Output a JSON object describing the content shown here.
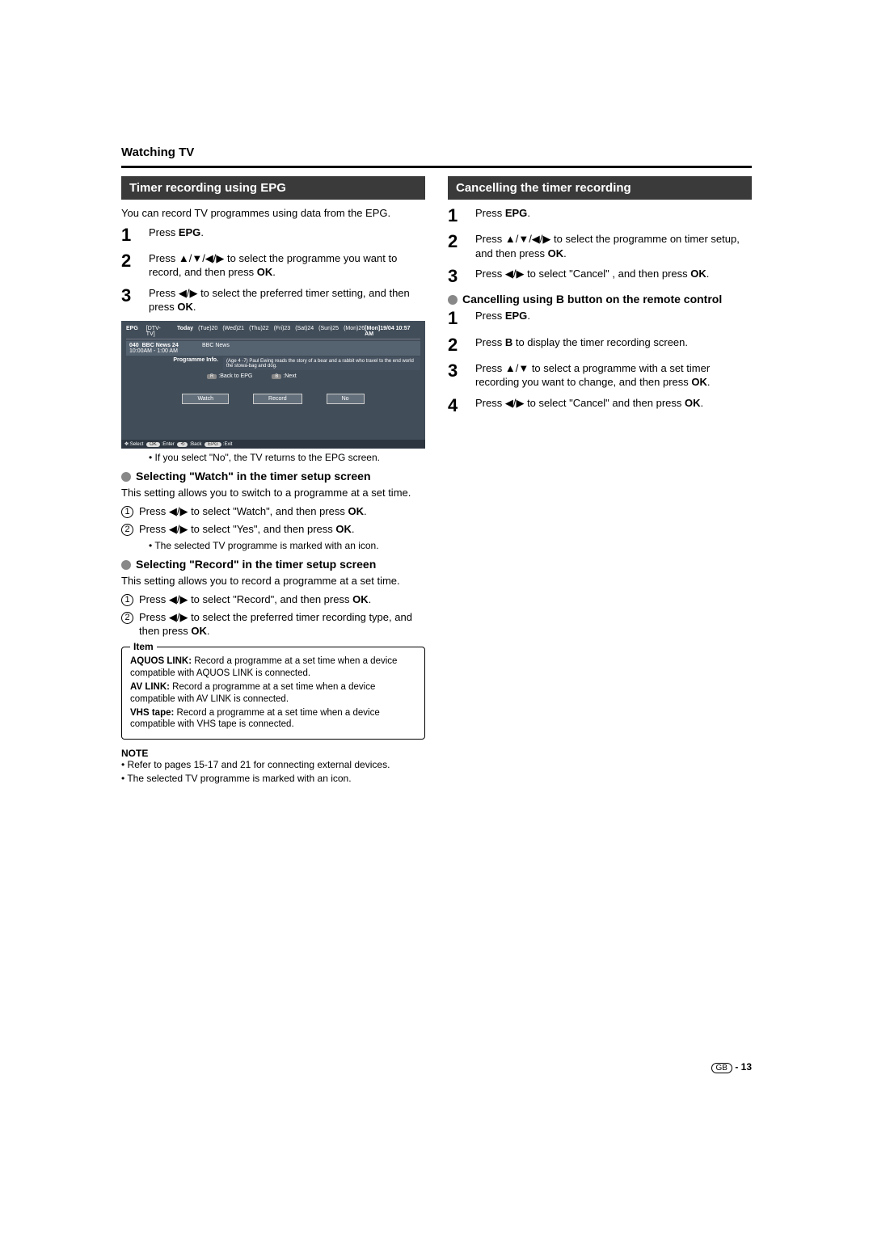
{
  "heading": "Watching TV",
  "left": {
    "sectionTitle": "Timer recording using EPG",
    "intro": "You can record TV programmes using data from the EPG.",
    "steps": [
      {
        "n": "1",
        "pre": "Press ",
        "bold1": "EPG",
        "post": "."
      },
      {
        "n": "2",
        "pre": "Press ",
        "sym": "▲/▼/◀/▶",
        "mid": " to select the programme you want to record, and then press ",
        "bold2": "OK",
        "post": "."
      },
      {
        "n": "3",
        "pre": "Press ",
        "sym": "◀/▶",
        "mid": " to select the preferred timer setting, and then press ",
        "bold2": "OK",
        "post": "."
      }
    ],
    "epg": {
      "topLeft1": "EPG",
      "topLeft2": "[DTV-TV]",
      "days": [
        "Today",
        "(Tue)20",
        "(Wed)21",
        "(Thu)22",
        "(Fri)23",
        "(Sat)24",
        "(Sun)25",
        "(Mon)26"
      ],
      "topRight": "[Mon]19/04 10:57 AM",
      "progCh": "040",
      "progTitle": "BBC News 24",
      "progTime": "10:00AM - 1:00 AM",
      "progRight": "BBC News",
      "infoLabel": "Programme Info.",
      "infoText": "(Age 4 -7) Paul Ewing reads the story of a bear and a rabbit who travel to the end world the stowa-bag and dog.",
      "navBack": ":Back to EPG",
      "navNext": ":Next",
      "navBackKey": "R",
      "navNextKey": "B",
      "btnWatch": "Watch",
      "btnRecord": "Record",
      "btnNo": "No",
      "footSelect": ":Select",
      "footEnter": ":Enter",
      "footBack": ":Back",
      "footExit": ":Exit",
      "pillOK": "OK",
      "pillRet": "⟲",
      "pillEPG": "EPG",
      "footArrows": "✥"
    },
    "noteAfterImg": "• If you select \"No\", the TV returns to the EPG screen.",
    "watch": {
      "title": "Selecting \"Watch\" in the timer setup screen",
      "desc": "This setting allows you to switch to a programme at a set time.",
      "s1": {
        "pre": "Press ",
        "sym": "◀/▶",
        "mid": " to select \"Watch\", and then press ",
        "bold": "OK",
        "post": "."
      },
      "s2": {
        "pre": "Press ",
        "sym": "◀/▶",
        "mid": " to select \"Yes\", and then press ",
        "bold": "OK",
        "post": "."
      },
      "note": "• The selected TV programme is marked with an icon."
    },
    "record": {
      "title": "Selecting \"Record\" in the timer setup screen",
      "desc": "This setting allows you to record a programme at a set time.",
      "s1": {
        "pre": "Press ",
        "sym": "◀/▶",
        "mid": " to select \"Record\", and then press ",
        "bold": "OK",
        "post": "."
      },
      "s2": {
        "pre": "Press ",
        "sym": "◀/▶",
        "mid": " to select the preferred timer recording type, and then press ",
        "bold": "OK",
        "post": "."
      }
    },
    "itemBox": {
      "legend": "Item",
      "l1b": "AQUOS LINK:",
      "l1": " Record a programme at a set time when a device compatible with AQUOS LINK is connected.",
      "l2b": "AV LINK:",
      "l2": " Record a programme at a set time when a device compatible with AV LINK is connected.",
      "l3b": "VHS tape:",
      "l3": " Record a programme at a set time when a device compatible with VHS tape is connected."
    },
    "noteHead": "NOTE",
    "noteItems": [
      "• Refer to pages 15-17 and 21 for connecting external devices.",
      "• The selected TV programme is marked with an icon."
    ]
  },
  "right": {
    "sectionTitle": "Cancelling the timer recording",
    "steps": [
      {
        "n": "1",
        "pre": "Press ",
        "bold1": "EPG",
        "post": "."
      },
      {
        "n": "2",
        "pre": "Press ",
        "sym": "▲/▼/◀/▶",
        "mid": " to select the programme on timer setup, and then press ",
        "bold2": "OK",
        "post": "."
      },
      {
        "n": "3",
        "pre": "Press ",
        "sym": "◀/▶",
        "mid": " to select \"Cancel\" , and then press ",
        "bold2": "OK",
        "post": "."
      }
    ],
    "subTitle": "Cancelling using B button on the remote control",
    "steps2": [
      {
        "n": "1",
        "pre": "Press ",
        "bold1": "EPG",
        "post": "."
      },
      {
        "n": "2",
        "pre": "Press ",
        "bold1": "B",
        "post": " to display the timer recording screen."
      },
      {
        "n": "3",
        "pre": "Press ",
        "sym": "▲/▼",
        "mid": " to select a programme with a set timer recording you want to change, and then press ",
        "bold2": "OK",
        "post": "."
      },
      {
        "n": "4",
        "pre": "Press ",
        "sym": "◀/▶",
        "mid": " to select \"Cancel\" and then press ",
        "bold2": "OK",
        "post": "."
      }
    ]
  },
  "footer": {
    "gb": "GB",
    "page": " - 13"
  }
}
